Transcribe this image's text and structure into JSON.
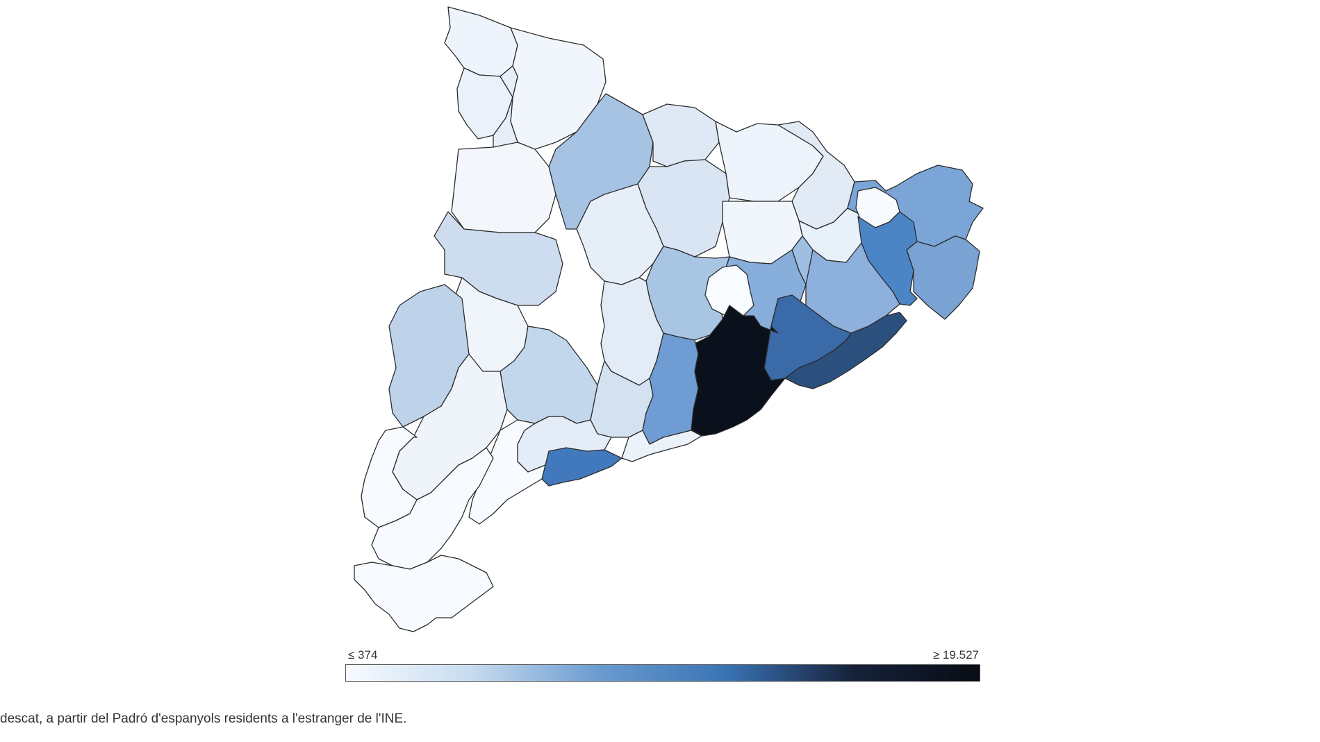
{
  "map": {
    "legend": {
      "min_label": "≤ 374",
      "max_label": "≥ 19.527",
      "min_value": 374,
      "max_value": 19527,
      "colors": [
        "#f7fbff",
        "#c6dbef",
        "#6a9bd0",
        "#3a73b5",
        "#16223a",
        "#080c14"
      ]
    },
    "regions": [
      {
        "level": 0.03,
        "color": "#eef4fb"
      },
      {
        "level": 0.04,
        "color": "#f1f6fc"
      },
      {
        "level": 0.05,
        "color": "#eaf1fa"
      },
      {
        "level": 0.06,
        "color": "#e6eef8"
      },
      {
        "level": 0.02,
        "color": "#f3f7fc"
      },
      {
        "level": 0.3,
        "color": "#a6c3e3"
      },
      {
        "level": 0.1,
        "color": "#dfe9f5"
      },
      {
        "level": 0.12,
        "color": "#d9e5f3"
      },
      {
        "level": 0.05,
        "color": "#eef4fb"
      },
      {
        "level": 0.1,
        "color": "#e1eaf5"
      },
      {
        "level": 0.06,
        "color": "#e8f0f9"
      },
      {
        "level": 0.03,
        "color": "#f1f6fc"
      },
      {
        "level": 0.4,
        "color": "#7aa5d6"
      },
      {
        "level": 0.14,
        "color": "#cddcee"
      },
      {
        "level": 0.32,
        "color": "#9ebee2"
      },
      {
        "level": 0.06,
        "color": "#e6eef8"
      },
      {
        "level": 0.38,
        "color": "#88aedb"
      },
      {
        "level": 0.01,
        "color": "#f7fbff"
      },
      {
        "level": 0.3,
        "color": "#9bbbe0"
      },
      {
        "level": 0.42,
        "color": "#7aa3d4"
      },
      {
        "level": 0.28,
        "color": "#a9c5e4"
      },
      {
        "level": 0.55,
        "color": "#4c85c6"
      },
      {
        "level": 0.36,
        "color": "#8db0dc"
      },
      {
        "level": 0.0,
        "color": "#f8fbff"
      },
      {
        "level": 0.62,
        "color": "#3a6aa8"
      },
      {
        "level": 0.72,
        "color": "#2c507e"
      },
      {
        "level": 1.0,
        "color": "#0a111c"
      },
      {
        "level": 0.44,
        "color": "#6f9cd2"
      },
      {
        "level": 0.58,
        "color": "#4279bd"
      },
      {
        "level": 0.08,
        "color": "#e2ebf6"
      },
      {
        "level": 0.03,
        "color": "#f0f5fb"
      },
      {
        "level": 0.18,
        "color": "#bed3ea"
      },
      {
        "level": 0.12,
        "color": "#d3e1f1"
      },
      {
        "level": 0.2,
        "color": "#c3d7ec"
      },
      {
        "level": 0.05,
        "color": "#eff4fa"
      },
      {
        "level": 0.09,
        "color": "#e3ecf7"
      },
      {
        "level": 0.06,
        "color": "#ebf2fa"
      }
    ]
  },
  "footer": {
    "source_note": "descat, a partir del Padró d'espanyols residents a l'estranger de l'INE."
  }
}
